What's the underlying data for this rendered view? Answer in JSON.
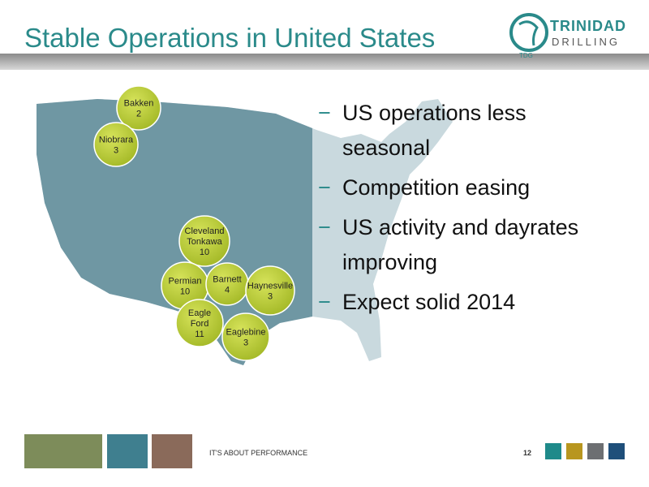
{
  "header": {
    "title": "Stable Operations in United States",
    "logo": {
      "name": "TRINIDAD",
      "sub": "DRILLING",
      "mark": "TDG"
    }
  },
  "map": {
    "regions": [
      {
        "label": [
          "Bakken"
        ],
        "rigs": 2
      },
      {
        "label": [
          "Niobrara"
        ],
        "rigs": 3
      },
      {
        "label": [
          "Cleveland",
          "Tonkawa"
        ],
        "rigs": 10
      },
      {
        "label": [
          "Permian"
        ],
        "rigs": 10
      },
      {
        "label": [
          "Barnett"
        ],
        "rigs": 4
      },
      {
        "label": [
          "Haynesville"
        ],
        "rigs": 3
      },
      {
        "label": [
          "Eagle",
          "Ford"
        ],
        "rigs": 11
      },
      {
        "label": [
          "Eaglebine"
        ],
        "rigs": 3
      }
    ]
  },
  "bullets": [
    {
      "dash": "−",
      "lines": [
        "US operations less",
        "seasonal"
      ]
    },
    {
      "dash": "−",
      "lines": [
        "Competition easing"
      ]
    },
    {
      "dash": "−",
      "lines": [
        "US activity and dayrates",
        "improving"
      ]
    },
    {
      "dash": "−",
      "lines": [
        "Expect solid 2014"
      ]
    }
  ],
  "footer": {
    "tagline": "IT'S ABOUT PERFORMANCE",
    "page": 12
  }
}
